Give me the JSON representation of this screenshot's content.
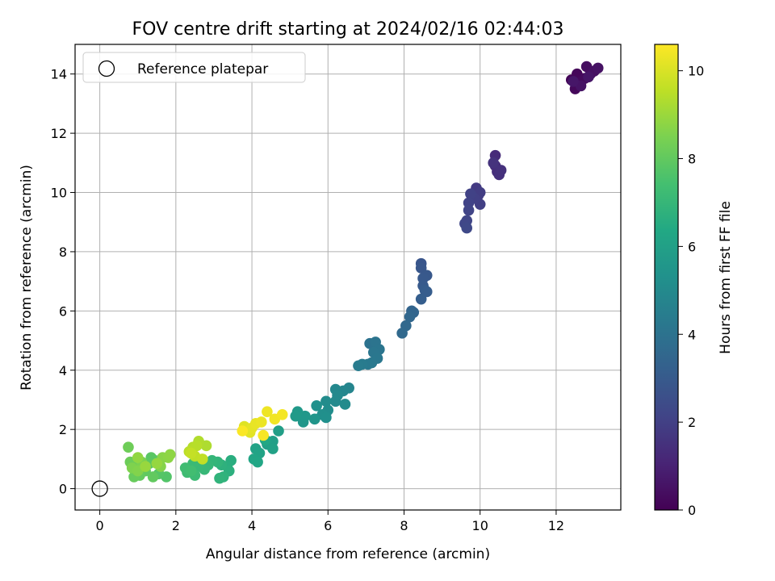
{
  "chart_data": {
    "type": "scatter",
    "title": "FOV centre drift starting at 2024/02/16 02:44:03",
    "xlabel": "Angular distance from reference (arcmin)",
    "ylabel": "Rotation from reference (arcmin)",
    "xlim": [
      -0.65,
      13.7
    ],
    "ylim": [
      -0.72,
      15.0
    ],
    "xticks": [
      0,
      2,
      4,
      6,
      8,
      10,
      12
    ],
    "yticks": [
      0,
      2,
      4,
      6,
      8,
      10,
      12,
      14
    ],
    "grid": true,
    "legend": {
      "placement": "top-left",
      "entries": [
        {
          "label": "Reference platepar",
          "marker": "open-circle"
        }
      ]
    },
    "reference_point": {
      "x": 0,
      "y": 0
    },
    "colorbar": {
      "label": "Hours from first FF file",
      "colormap": "viridis",
      "min": 0,
      "max": 10.6,
      "ticks": [
        0,
        2,
        4,
        6,
        8,
        10
      ]
    },
    "series": [
      {
        "color_value": "hours",
        "points": [
          {
            "x": 12.4,
            "y": 13.8,
            "c": 0.1
          },
          {
            "x": 12.55,
            "y": 14.0,
            "c": 0.15
          },
          {
            "x": 12.5,
            "y": 13.5,
            "c": 0.2
          },
          {
            "x": 12.6,
            "y": 13.7,
            "c": 0.25
          },
          {
            "x": 12.75,
            "y": 13.85,
            "c": 0.3
          },
          {
            "x": 12.8,
            "y": 14.25,
            "c": 0.35
          },
          {
            "x": 12.9,
            "y": 14.0,
            "c": 0.4
          },
          {
            "x": 13.0,
            "y": 14.1,
            "c": 0.45
          },
          {
            "x": 13.1,
            "y": 14.2,
            "c": 0.5
          },
          {
            "x": 12.65,
            "y": 13.6,
            "c": 0.55
          },
          {
            "x": 12.85,
            "y": 13.9,
            "c": 0.6
          },
          {
            "x": 12.45,
            "y": 13.75,
            "c": 0.65
          },
          {
            "x": 10.4,
            "y": 11.25,
            "c": 1.3
          },
          {
            "x": 10.4,
            "y": 10.9,
            "c": 1.35
          },
          {
            "x": 10.45,
            "y": 10.7,
            "c": 1.4
          },
          {
            "x": 10.5,
            "y": 10.6,
            "c": 1.45
          },
          {
            "x": 10.55,
            "y": 10.75,
            "c": 1.5
          },
          {
            "x": 10.35,
            "y": 11.0,
            "c": 1.55
          },
          {
            "x": 9.9,
            "y": 10.15,
            "c": 1.8
          },
          {
            "x": 9.95,
            "y": 9.9,
            "c": 1.85
          },
          {
            "x": 10.0,
            "y": 10.0,
            "c": 1.9
          },
          {
            "x": 10.0,
            "y": 9.6,
            "c": 1.95
          },
          {
            "x": 9.85,
            "y": 9.8,
            "c": 2.0
          },
          {
            "x": 9.75,
            "y": 9.95,
            "c": 2.05
          },
          {
            "x": 9.7,
            "y": 9.65,
            "c": 2.1
          },
          {
            "x": 9.7,
            "y": 9.4,
            "c": 2.15
          },
          {
            "x": 9.65,
            "y": 9.05,
            "c": 2.2
          },
          {
            "x": 9.6,
            "y": 8.95,
            "c": 2.25
          },
          {
            "x": 9.65,
            "y": 8.8,
            "c": 2.3
          },
          {
            "x": 8.45,
            "y": 7.6,
            "c": 2.8
          },
          {
            "x": 8.45,
            "y": 7.45,
            "c": 2.85
          },
          {
            "x": 8.6,
            "y": 7.2,
            "c": 2.9
          },
          {
            "x": 8.5,
            "y": 7.1,
            "c": 2.95
          },
          {
            "x": 8.5,
            "y": 6.85,
            "c": 3.0
          },
          {
            "x": 8.55,
            "y": 6.7,
            "c": 3.05
          },
          {
            "x": 8.6,
            "y": 6.65,
            "c": 3.1
          },
          {
            "x": 8.45,
            "y": 6.4,
            "c": 3.15
          },
          {
            "x": 8.2,
            "y": 6.0,
            "c": 3.4
          },
          {
            "x": 8.25,
            "y": 5.95,
            "c": 3.45
          },
          {
            "x": 8.15,
            "y": 5.8,
            "c": 3.5
          },
          {
            "x": 8.05,
            "y": 5.5,
            "c": 3.55
          },
          {
            "x": 7.95,
            "y": 5.25,
            "c": 3.6
          },
          {
            "x": 7.1,
            "y": 4.9,
            "c": 4.0
          },
          {
            "x": 7.25,
            "y": 4.95,
            "c": 4.05
          },
          {
            "x": 7.35,
            "y": 4.7,
            "c": 4.1
          },
          {
            "x": 7.2,
            "y": 4.6,
            "c": 4.15
          },
          {
            "x": 7.3,
            "y": 4.4,
            "c": 4.2
          },
          {
            "x": 7.15,
            "y": 4.25,
            "c": 4.25
          },
          {
            "x": 7.05,
            "y": 4.2,
            "c": 4.3
          },
          {
            "x": 6.9,
            "y": 4.2,
            "c": 4.35
          },
          {
            "x": 6.8,
            "y": 4.15,
            "c": 4.4
          },
          {
            "x": 6.55,
            "y": 3.4,
            "c": 4.8
          },
          {
            "x": 6.4,
            "y": 3.3,
            "c": 4.85
          },
          {
            "x": 6.2,
            "y": 3.35,
            "c": 4.9
          },
          {
            "x": 6.25,
            "y": 3.15,
            "c": 4.95
          },
          {
            "x": 6.2,
            "y": 2.95,
            "c": 5.0
          },
          {
            "x": 6.45,
            "y": 2.85,
            "c": 5.05
          },
          {
            "x": 5.95,
            "y": 2.95,
            "c": 5.1
          },
          {
            "x": 6.0,
            "y": 2.65,
            "c": 5.15
          },
          {
            "x": 5.85,
            "y": 2.5,
            "c": 5.2
          },
          {
            "x": 5.95,
            "y": 2.4,
            "c": 5.25
          },
          {
            "x": 5.7,
            "y": 2.8,
            "c": 5.3
          },
          {
            "x": 5.65,
            "y": 2.35,
            "c": 5.5
          },
          {
            "x": 5.35,
            "y": 2.25,
            "c": 5.55
          },
          {
            "x": 5.4,
            "y": 2.45,
            "c": 5.6
          },
          {
            "x": 5.2,
            "y": 2.6,
            "c": 5.65
          },
          {
            "x": 5.15,
            "y": 2.45,
            "c": 5.7
          },
          {
            "x": 4.7,
            "y": 1.95,
            "c": 5.9
          },
          {
            "x": 4.55,
            "y": 1.6,
            "c": 5.95
          },
          {
            "x": 4.4,
            "y": 1.5,
            "c": 6.0
          },
          {
            "x": 4.55,
            "y": 1.35,
            "c": 6.05
          },
          {
            "x": 4.1,
            "y": 1.35,
            "c": 6.1
          },
          {
            "x": 4.2,
            "y": 1.2,
            "c": 6.15
          },
          {
            "x": 4.05,
            "y": 1.0,
            "c": 6.2
          },
          {
            "x": 4.15,
            "y": 0.9,
            "c": 6.25
          },
          {
            "x": 4.35,
            "y": 1.65,
            "c": 6.3
          },
          {
            "x": 3.45,
            "y": 0.95,
            "c": 6.6
          },
          {
            "x": 3.35,
            "y": 0.75,
            "c": 6.65
          },
          {
            "x": 3.4,
            "y": 0.6,
            "c": 6.7
          },
          {
            "x": 3.2,
            "y": 0.8,
            "c": 6.75
          },
          {
            "x": 3.25,
            "y": 0.4,
            "c": 6.8
          },
          {
            "x": 3.15,
            "y": 0.35,
            "c": 6.85
          },
          {
            "x": 3.1,
            "y": 0.9,
            "c": 6.9
          },
          {
            "x": 2.95,
            "y": 0.95,
            "c": 6.95
          },
          {
            "x": 2.85,
            "y": 0.8,
            "c": 7.0
          },
          {
            "x": 2.75,
            "y": 0.65,
            "c": 7.05
          },
          {
            "x": 2.6,
            "y": 0.75,
            "c": 7.1
          },
          {
            "x": 2.45,
            "y": 0.85,
            "c": 7.15
          },
          {
            "x": 2.5,
            "y": 0.45,
            "c": 7.2
          },
          {
            "x": 2.3,
            "y": 0.55,
            "c": 7.25
          },
          {
            "x": 2.25,
            "y": 0.7,
            "c": 7.3
          },
          {
            "x": 2.4,
            "y": 0.6,
            "c": 7.35
          },
          {
            "x": 1.75,
            "y": 0.4,
            "c": 7.7
          },
          {
            "x": 1.55,
            "y": 0.5,
            "c": 7.75
          },
          {
            "x": 1.45,
            "y": 0.95,
            "c": 7.8
          },
          {
            "x": 1.35,
            "y": 1.05,
            "c": 7.85
          },
          {
            "x": 1.3,
            "y": 0.85,
            "c": 7.9
          },
          {
            "x": 1.2,
            "y": 0.6,
            "c": 7.95
          },
          {
            "x": 1.4,
            "y": 0.4,
            "c": 8.0
          },
          {
            "x": 1.05,
            "y": 0.45,
            "c": 8.05
          },
          {
            "x": 0.9,
            "y": 0.4,
            "c": 8.1
          },
          {
            "x": 0.95,
            "y": 0.8,
            "c": 8.15
          },
          {
            "x": 0.8,
            "y": 0.9,
            "c": 8.2
          },
          {
            "x": 0.75,
            "y": 1.4,
            "c": 8.25
          },
          {
            "x": 1.1,
            "y": 0.9,
            "c": 8.5
          },
          {
            "x": 0.85,
            "y": 0.7,
            "c": 8.55
          },
          {
            "x": 1.0,
            "y": 0.6,
            "c": 8.6
          },
          {
            "x": 1.6,
            "y": 0.75,
            "c": 8.65
          },
          {
            "x": 1.65,
            "y": 1.05,
            "c": 8.7
          },
          {
            "x": 1.8,
            "y": 1.05,
            "c": 8.75
          },
          {
            "x": 1.85,
            "y": 1.15,
            "c": 8.8
          },
          {
            "x": 1.0,
            "y": 1.05,
            "c": 8.85
          },
          {
            "x": 1.5,
            "y": 0.85,
            "c": 8.9
          },
          {
            "x": 1.2,
            "y": 0.75,
            "c": 8.95
          },
          {
            "x": 2.8,
            "y": 1.45,
            "c": 9.3
          },
          {
            "x": 2.6,
            "y": 1.6,
            "c": 9.35
          },
          {
            "x": 2.45,
            "y": 1.4,
            "c": 9.4
          },
          {
            "x": 2.55,
            "y": 1.45,
            "c": 9.45
          },
          {
            "x": 2.35,
            "y": 1.25,
            "c": 9.5
          },
          {
            "x": 2.5,
            "y": 1.1,
            "c": 9.55
          },
          {
            "x": 2.7,
            "y": 1.0,
            "c": 9.6
          },
          {
            "x": 2.4,
            "y": 1.2,
            "c": 9.65
          },
          {
            "x": 3.8,
            "y": 2.1,
            "c": 10.1
          },
          {
            "x": 3.95,
            "y": 1.9,
            "c": 10.15
          },
          {
            "x": 4.0,
            "y": 2.05,
            "c": 10.2
          },
          {
            "x": 4.1,
            "y": 2.2,
            "c": 10.25
          },
          {
            "x": 4.25,
            "y": 2.25,
            "c": 10.3
          },
          {
            "x": 4.4,
            "y": 2.6,
            "c": 10.35
          },
          {
            "x": 4.6,
            "y": 2.35,
            "c": 10.4
          },
          {
            "x": 4.8,
            "y": 2.5,
            "c": 10.45
          },
          {
            "x": 4.3,
            "y": 1.8,
            "c": 10.5
          },
          {
            "x": 3.75,
            "y": 1.95,
            "c": 10.55
          }
        ]
      }
    ]
  }
}
